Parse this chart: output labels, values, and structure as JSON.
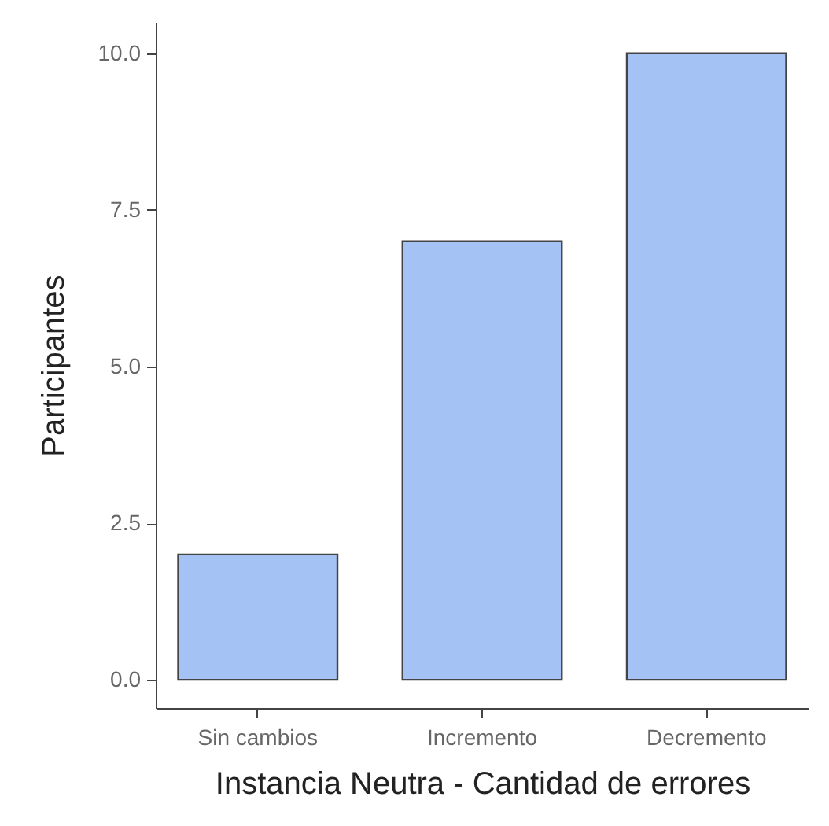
{
  "chart_data": {
    "type": "bar",
    "xlabel": "Instancia Neutra - Cantidad de errores",
    "ylabel": "Participantes",
    "categories": [
      "Sin cambios",
      "Incremento",
      "Decremento"
    ],
    "values": [
      2,
      7,
      10
    ],
    "color": "#a4c2f4",
    "ylim": [
      -0.45,
      10.5
    ],
    "yticks": [
      {
        "value": 0,
        "label": "0.0"
      },
      {
        "value": 2.5,
        "label": "2.5"
      },
      {
        "value": 5,
        "label": "5.0"
      },
      {
        "value": 7.5,
        "label": "7.5"
      },
      {
        "value": 10,
        "label": "10.0"
      }
    ],
    "grid": false
  }
}
